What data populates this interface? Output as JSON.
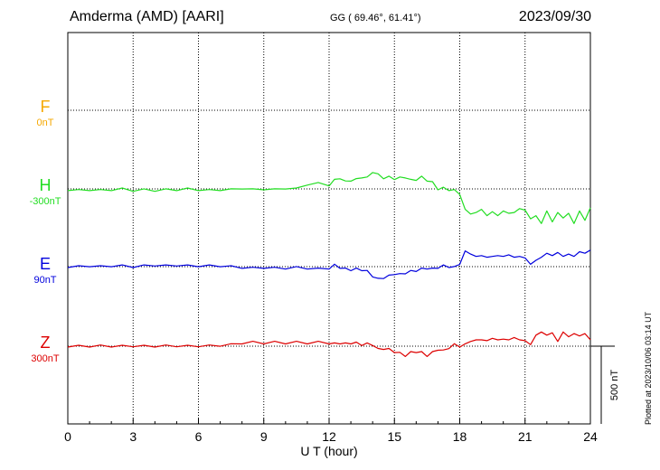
{
  "header": {
    "station": "Amderma (AMD)  [AARI]",
    "coords": "GG ( 69.46°,  61.41°)",
    "date": "2023/09/30"
  },
  "footer": "Plotted at 2023/10/06 03:14 UT",
  "chart_data": {
    "type": "line",
    "xlabel": "U T (hour)",
    "xlim": [
      0,
      24
    ],
    "xticks": [
      "0",
      "3",
      "6",
      "9",
      "12",
      "15",
      "18",
      "21",
      "24"
    ],
    "scale_bar_label": "500 nT",
    "components": [
      {
        "name": "F",
        "baseline": "0nT",
        "color": "#f5a800"
      },
      {
        "name": "H",
        "baseline": "-300nT",
        "color": "#22dd22"
      },
      {
        "name": "E",
        "baseline": "90nT",
        "color": "#0000dd"
      },
      {
        "name": "Z",
        "baseline": "300nT",
        "color": "#dd0000"
      }
    ],
    "series": [
      {
        "name": "H",
        "color": "#22dd22",
        "x": [
          0,
          0.5,
          1,
          1.5,
          2,
          2.5,
          3,
          3.5,
          4,
          4.5,
          5,
          5.5,
          6,
          6.5,
          7,
          7.5,
          8,
          8.5,
          9,
          9.5,
          10,
          10.5,
          11,
          11.5,
          12,
          12.25,
          12.5,
          12.75,
          13,
          13.25,
          13.5,
          13.75,
          14,
          14.25,
          14.5,
          14.75,
          15,
          15.25,
          15.5,
          15.75,
          16,
          16.25,
          16.5,
          16.75,
          17,
          17.25,
          17.5,
          17.75,
          18,
          18.25,
          18.5,
          18.75,
          19,
          19.25,
          19.5,
          19.75,
          20,
          20.25,
          20.5,
          20.75,
          21,
          21.25,
          21.5,
          21.75,
          22,
          22.25,
          22.5,
          22.75,
          23,
          23.25,
          23.5,
          23.75,
          24
        ],
        "values": [
          -5,
          -10,
          -5,
          -10,
          -5,
          0,
          -10,
          -5,
          -10,
          -5,
          -5,
          0,
          -5,
          -10,
          -5,
          -5,
          5,
          -5,
          0,
          -5,
          5,
          0,
          30,
          35,
          25,
          55,
          70,
          45,
          55,
          60,
          75,
          70,
          110,
          90,
          70,
          75,
          65,
          70,
          75,
          55,
          60,
          75,
          55,
          40,
          0,
          5,
          -5,
          -10,
          -30,
          -130,
          -160,
          -150,
          -130,
          -170,
          -145,
          -170,
          -140,
          -155,
          -150,
          -125,
          -135,
          -190,
          -170,
          -220,
          -140,
          -210,
          -150,
          -185,
          -155,
          -220,
          -140,
          -200,
          -120
        ]
      },
      {
        "name": "E",
        "color": "#0000dd",
        "x": [
          0,
          0.5,
          1,
          1.5,
          2,
          2.5,
          3,
          3.5,
          4,
          4.5,
          5,
          5.5,
          6,
          6.5,
          7,
          7.5,
          8,
          8.5,
          9,
          9.5,
          10,
          10.5,
          11,
          11.5,
          12,
          12.25,
          12.5,
          12.75,
          13,
          13.25,
          13.5,
          13.75,
          14,
          14.25,
          14.5,
          14.75,
          15,
          15.25,
          15.5,
          15.75,
          16,
          16.25,
          16.5,
          16.75,
          17,
          17.25,
          17.5,
          17.75,
          18,
          18.25,
          18.5,
          18.75,
          19,
          19.25,
          19.5,
          19.75,
          20,
          20.25,
          20.5,
          20.75,
          21,
          21.25,
          21.5,
          21.75,
          22,
          22.25,
          22.5,
          22.75,
          23,
          23.25,
          23.5,
          23.75,
          24
        ],
        "values": [
          0,
          0,
          5,
          0,
          5,
          5,
          0,
          5,
          10,
          5,
          10,
          5,
          5,
          5,
          5,
          0,
          -5,
          -10,
          -5,
          -10,
          -10,
          -5,
          -10,
          -15,
          -10,
          10,
          -5,
          -15,
          -20,
          -15,
          -20,
          -30,
          -60,
          -80,
          -70,
          -60,
          -45,
          -50,
          -40,
          -30,
          -25,
          -15,
          -10,
          -15,
          -5,
          5,
          0,
          -5,
          20,
          100,
          80,
          65,
          70,
          60,
          65,
          70,
          65,
          75,
          60,
          65,
          55,
          15,
          40,
          60,
          85,
          70,
          90,
          65,
          80,
          65,
          95,
          85,
          105
        ]
      },
      {
        "name": "Z",
        "color": "#dd0000",
        "x": [
          0,
          0.5,
          1,
          1.5,
          2,
          2.5,
          3,
          3.5,
          4,
          4.5,
          5,
          5.5,
          6,
          6.5,
          7,
          7.5,
          8,
          8.5,
          9,
          9.5,
          10,
          10.5,
          11,
          11.5,
          12,
          12.25,
          12.5,
          12.75,
          13,
          13.25,
          13.5,
          13.75,
          14,
          14.25,
          14.5,
          14.75,
          15,
          15.25,
          15.5,
          15.75,
          16,
          16.25,
          16.5,
          16.75,
          17,
          17.25,
          17.5,
          17.75,
          18,
          18.25,
          18.5,
          18.75,
          19,
          19.25,
          19.5,
          19.75,
          20,
          20.25,
          20.5,
          20.75,
          21,
          21.25,
          21.5,
          21.75,
          22,
          22.25,
          22.5,
          22.75,
          23,
          23.25,
          23.5,
          23.75,
          24
        ],
        "values": [
          0,
          0,
          0,
          2,
          0,
          0,
          2,
          0,
          0,
          2,
          2,
          0,
          2,
          2,
          5,
          10,
          20,
          25,
          20,
          25,
          20,
          25,
          20,
          25,
          20,
          15,
          20,
          15,
          20,
          20,
          10,
          15,
          10,
          -20,
          -15,
          -20,
          -35,
          -45,
          -60,
          -40,
          -35,
          -40,
          -60,
          -40,
          -20,
          -30,
          -10,
          10,
          0,
          15,
          30,
          40,
          40,
          35,
          50,
          40,
          45,
          40,
          55,
          40,
          35,
          10,
          70,
          90,
          70,
          85,
          30,
          90,
          60,
          80,
          65,
          80,
          40
        ]
      }
    ]
  }
}
